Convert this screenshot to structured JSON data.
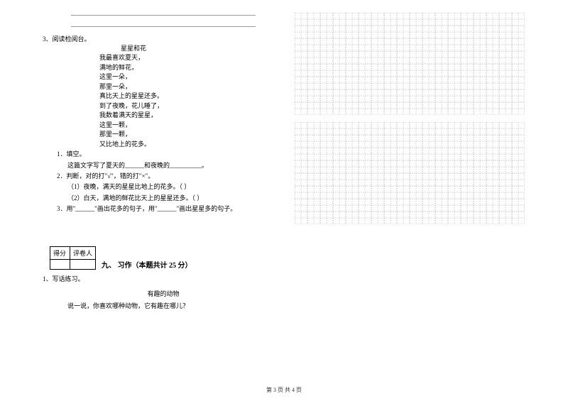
{
  "q3": {
    "num": "3、阅读检阅台。",
    "title": "星星和花",
    "lines": [
      "我最喜欢夏天，",
      "满地的鲜花，",
      "这里一朵，",
      "那里一朵，",
      "真比天上的星星还多。",
      "到了夜晚，花儿睡了，",
      "我数着满天的星星，",
      "这里一颗，",
      "那里一颗，",
      "又比地上的花多。"
    ],
    "sub1": "1．填空。",
    "sub1_line": "这篇文字写了夏天的______和夜晚的__________。",
    "sub2": "2．判断，对的打\"√\"，错的打\"×\"。",
    "sub2_1": "（1）夜晚，满天的星星比地上的花多。（    ）",
    "sub2_2": "（2）白天，满地的鲜花比天上的星星还多。（    ）",
    "sub3": "3．用\"______\"画出花多的句子，用\"______\"画出星星多的句子。"
  },
  "score": {
    "c1": "得分",
    "c2": "评卷人"
  },
  "section9": {
    "title": "九、 习作（本题共计 25 分）",
    "q1": "1、写话练习。",
    "topic": "有趣的动物",
    "prompt": "说一说，你喜欢哪种动物，它有趣在哪儿？"
  },
  "grid": {
    "cols": 18,
    "rows": 8,
    "cell": 18,
    "stroke": "#888888",
    "dash": "1.5,1.5"
  },
  "footer": "第 3 页 共 4 页"
}
